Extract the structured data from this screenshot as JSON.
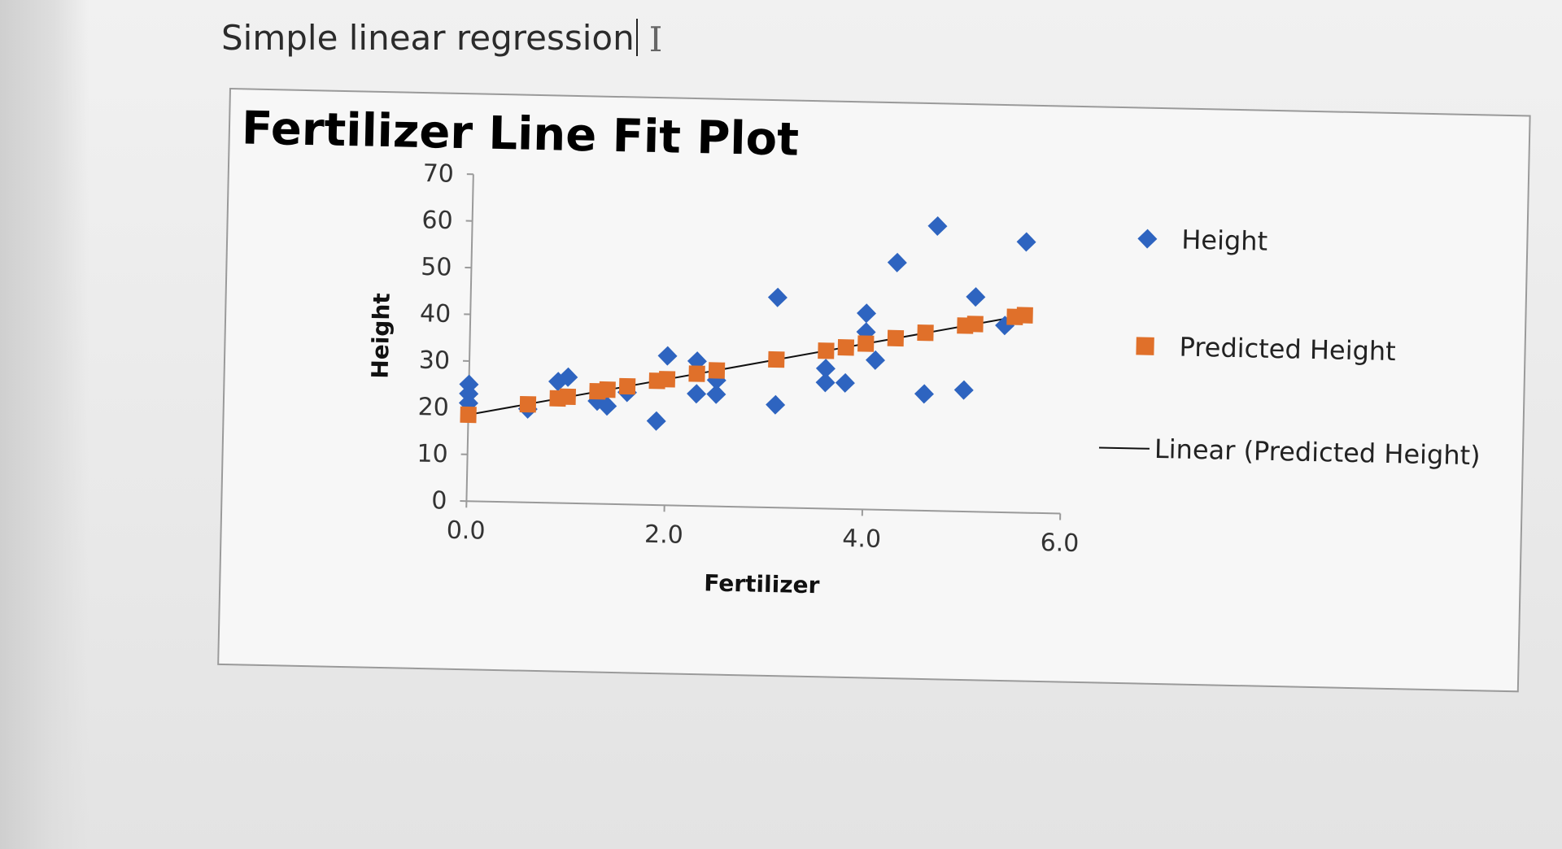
{
  "document": {
    "heading": "Simple linear regression"
  },
  "colors": {
    "height_marker": "#2e64c0",
    "predicted_marker": "#e0702a",
    "trendline": "#111111"
  },
  "chart_data": {
    "type": "scatter",
    "title": "Fertilizer Line Fit  Plot",
    "xlabel": "Fertilizer",
    "ylabel": "Height",
    "xlim": [
      0,
      6
    ],
    "ylim": [
      0,
      70
    ],
    "xticks": [
      "0.0",
      "2.0",
      "4.0",
      "6.0"
    ],
    "yticks": [
      "0",
      "10",
      "20",
      "30",
      "40",
      "50",
      "60",
      "70"
    ],
    "legend_position": "right",
    "legend": [
      "Height",
      "Predicted Height",
      "Linear (Predicted Height)"
    ],
    "grid": false,
    "series": [
      {
        "name": "Height",
        "marker": "diamond",
        "x": [
          0.0,
          0.0,
          0.0,
          0.6,
          0.9,
          1.0,
          1.3,
          1.4,
          1.6,
          1.9,
          2.0,
          2.3,
          2.3,
          2.5,
          2.5,
          3.1,
          3.1,
          3.6,
          3.6,
          3.8,
          4.0,
          4.0,
          4.1,
          4.3,
          4.6,
          4.7,
          5.0,
          5.1,
          5.4,
          5.6
        ],
        "y": [
          25,
          23,
          21,
          20,
          26,
          27,
          22,
          21,
          24,
          18,
          32,
          31,
          24,
          27,
          24,
          45,
          22,
          30,
          27,
          27,
          38,
          42,
          32,
          53,
          25,
          61,
          26,
          46,
          40,
          58
        ]
      },
      {
        "name": "Predicted Height",
        "marker": "square",
        "x": [
          0.0,
          0.6,
          0.9,
          1.0,
          1.3,
          1.4,
          1.6,
          1.9,
          2.0,
          2.3,
          2.5,
          3.1,
          3.6,
          3.8,
          4.0,
          4.3,
          4.6,
          5.0,
          5.1,
          5.5,
          5.6
        ],
        "y": [
          18.5,
          21.0,
          22.4,
          22.8,
          24.1,
          24.5,
          25.3,
          26.6,
          27.0,
          28.3,
          29.1,
          31.7,
          33.8,
          34.6,
          35.5,
          36.8,
          38.1,
          39.8,
          40.2,
          41.9,
          42.3
        ]
      }
    ],
    "trendline": {
      "name": "Linear (Predicted Height)",
      "slope": 4.25,
      "intercept": 18.5,
      "x_range": [
        0,
        5.6
      ]
    }
  }
}
